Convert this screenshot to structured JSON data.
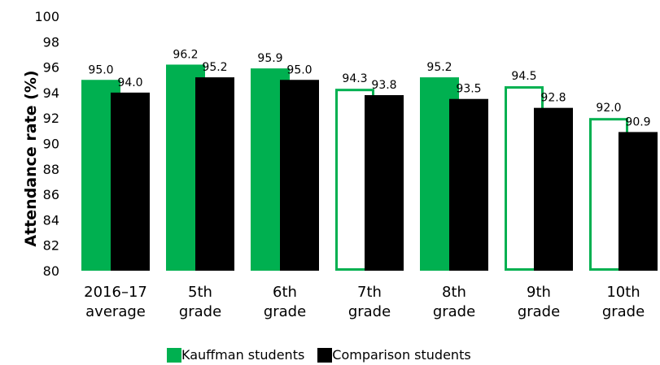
{
  "chart_data": {
    "type": "bar",
    "ylabel": "Attendance rate (%)",
    "ylim": [
      80,
      100
    ],
    "yticks": [
      80,
      82,
      84,
      86,
      88,
      90,
      92,
      94,
      96,
      98,
      100
    ],
    "grid": false,
    "legend_position": "bottom",
    "categories": [
      [
        "2016–17",
        "average"
      ],
      [
        "5th",
        "grade"
      ],
      [
        "6th",
        "grade"
      ],
      [
        "7th",
        "grade"
      ],
      [
        "8th",
        "grade"
      ],
      [
        "9th",
        "grade"
      ],
      [
        "10th",
        "grade"
      ]
    ],
    "series": [
      {
        "name": "Kauffman students",
        "color": "#00B050",
        "values": [
          95.0,
          96.2,
          95.9,
          94.3,
          95.2,
          94.5,
          92.0
        ],
        "labels": [
          "95.0",
          "96.2",
          "95.9",
          "94.3",
          "95.2",
          "94.5",
          "92.0"
        ],
        "outline_only": [
          false,
          false,
          false,
          true,
          false,
          true,
          true
        ]
      },
      {
        "name": "Comparison students",
        "color": "#000000",
        "values": [
          94.0,
          95.2,
          95.0,
          93.8,
          93.5,
          92.8,
          90.9
        ],
        "labels": [
          "94.0",
          "95.2",
          "95.0",
          "93.8",
          "93.5",
          "92.8",
          "90.9"
        ]
      }
    ]
  }
}
